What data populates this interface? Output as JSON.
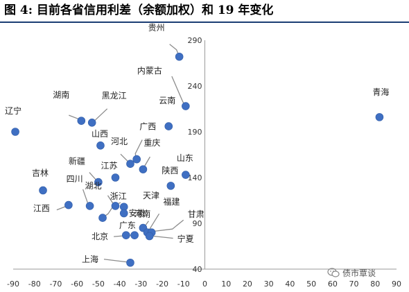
{
  "header": {
    "title": "图 4:  目前各省信用利差（余额加权）和 19 年变化"
  },
  "watermark": {
    "text": "债市覃谈",
    "icon": "wechat-icon"
  },
  "chart_data": {
    "type": "scatter",
    "title": "",
    "xlabel": "",
    "ylabel": "",
    "xlim": [
      -90,
      90
    ],
    "ylim": [
      40,
      290
    ],
    "x_ticks": [
      -90,
      -80,
      -70,
      -60,
      -50,
      -40,
      -30,
      -20,
      -10,
      0,
      10,
      20,
      30,
      40,
      50,
      60,
      70,
      80,
      90
    ],
    "y_ticks": [
      40,
      90,
      140,
      190,
      240,
      290
    ],
    "y_axis_position": "x=0",
    "grid": false,
    "legend": "none",
    "point_color": "#3f6fc2",
    "points": [
      {
        "name": "贵州",
        "x": -12,
        "y": 272
      },
      {
        "name": "内蒙古",
        "x": -9,
        "y": 218
      },
      {
        "name": "青海",
        "x": 82,
        "y": 206
      },
      {
        "name": "云南",
        "x": -17,
        "y": 196
      },
      {
        "name": "辽宁",
        "x": -89,
        "y": 190
      },
      {
        "name": "湖南",
        "x": -58,
        "y": 202
      },
      {
        "name": "黑龙江",
        "x": -53,
        "y": 200
      },
      {
        "name": "山西",
        "x": -49,
        "y": 175
      },
      {
        "name": "广西",
        "x": -32,
        "y": 160
      },
      {
        "name": "河北",
        "x": -35,
        "y": 155
      },
      {
        "name": "重庆",
        "x": -29,
        "y": 149
      },
      {
        "name": "山东",
        "x": -9,
        "y": 143
      },
      {
        "name": "江苏",
        "x": -42,
        "y": 140
      },
      {
        "name": "新疆",
        "x": -50,
        "y": 135
      },
      {
        "name": "陕西",
        "x": -16,
        "y": 131
      },
      {
        "name": "吉林",
        "x": -76,
        "y": 126
      },
      {
        "name": "四川",
        "x": -54,
        "y": 109
      },
      {
        "name": "湖北",
        "x": -42,
        "y": 109
      },
      {
        "name": "浙江",
        "x": -38,
        "y": 108
      },
      {
        "name": "安徽",
        "x": -38,
        "y": 101
      },
      {
        "name": "江西",
        "x": -64,
        "y": 110
      },
      {
        "name": "天津",
        "x": -48,
        "y": 96
      },
      {
        "name": "广东",
        "x": -37,
        "y": 77
      },
      {
        "name": "河南",
        "x": -29,
        "y": 85
      },
      {
        "name": "福建",
        "x": -27,
        "y": 80
      },
      {
        "name": "甘肃",
        "x": -25,
        "y": 80
      },
      {
        "name": "北京",
        "x": -33,
        "y": 77
      },
      {
        "name": "宁夏",
        "x": -26,
        "y": 76
      },
      {
        "name": "上海",
        "x": -35,
        "y": 47
      }
    ]
  }
}
